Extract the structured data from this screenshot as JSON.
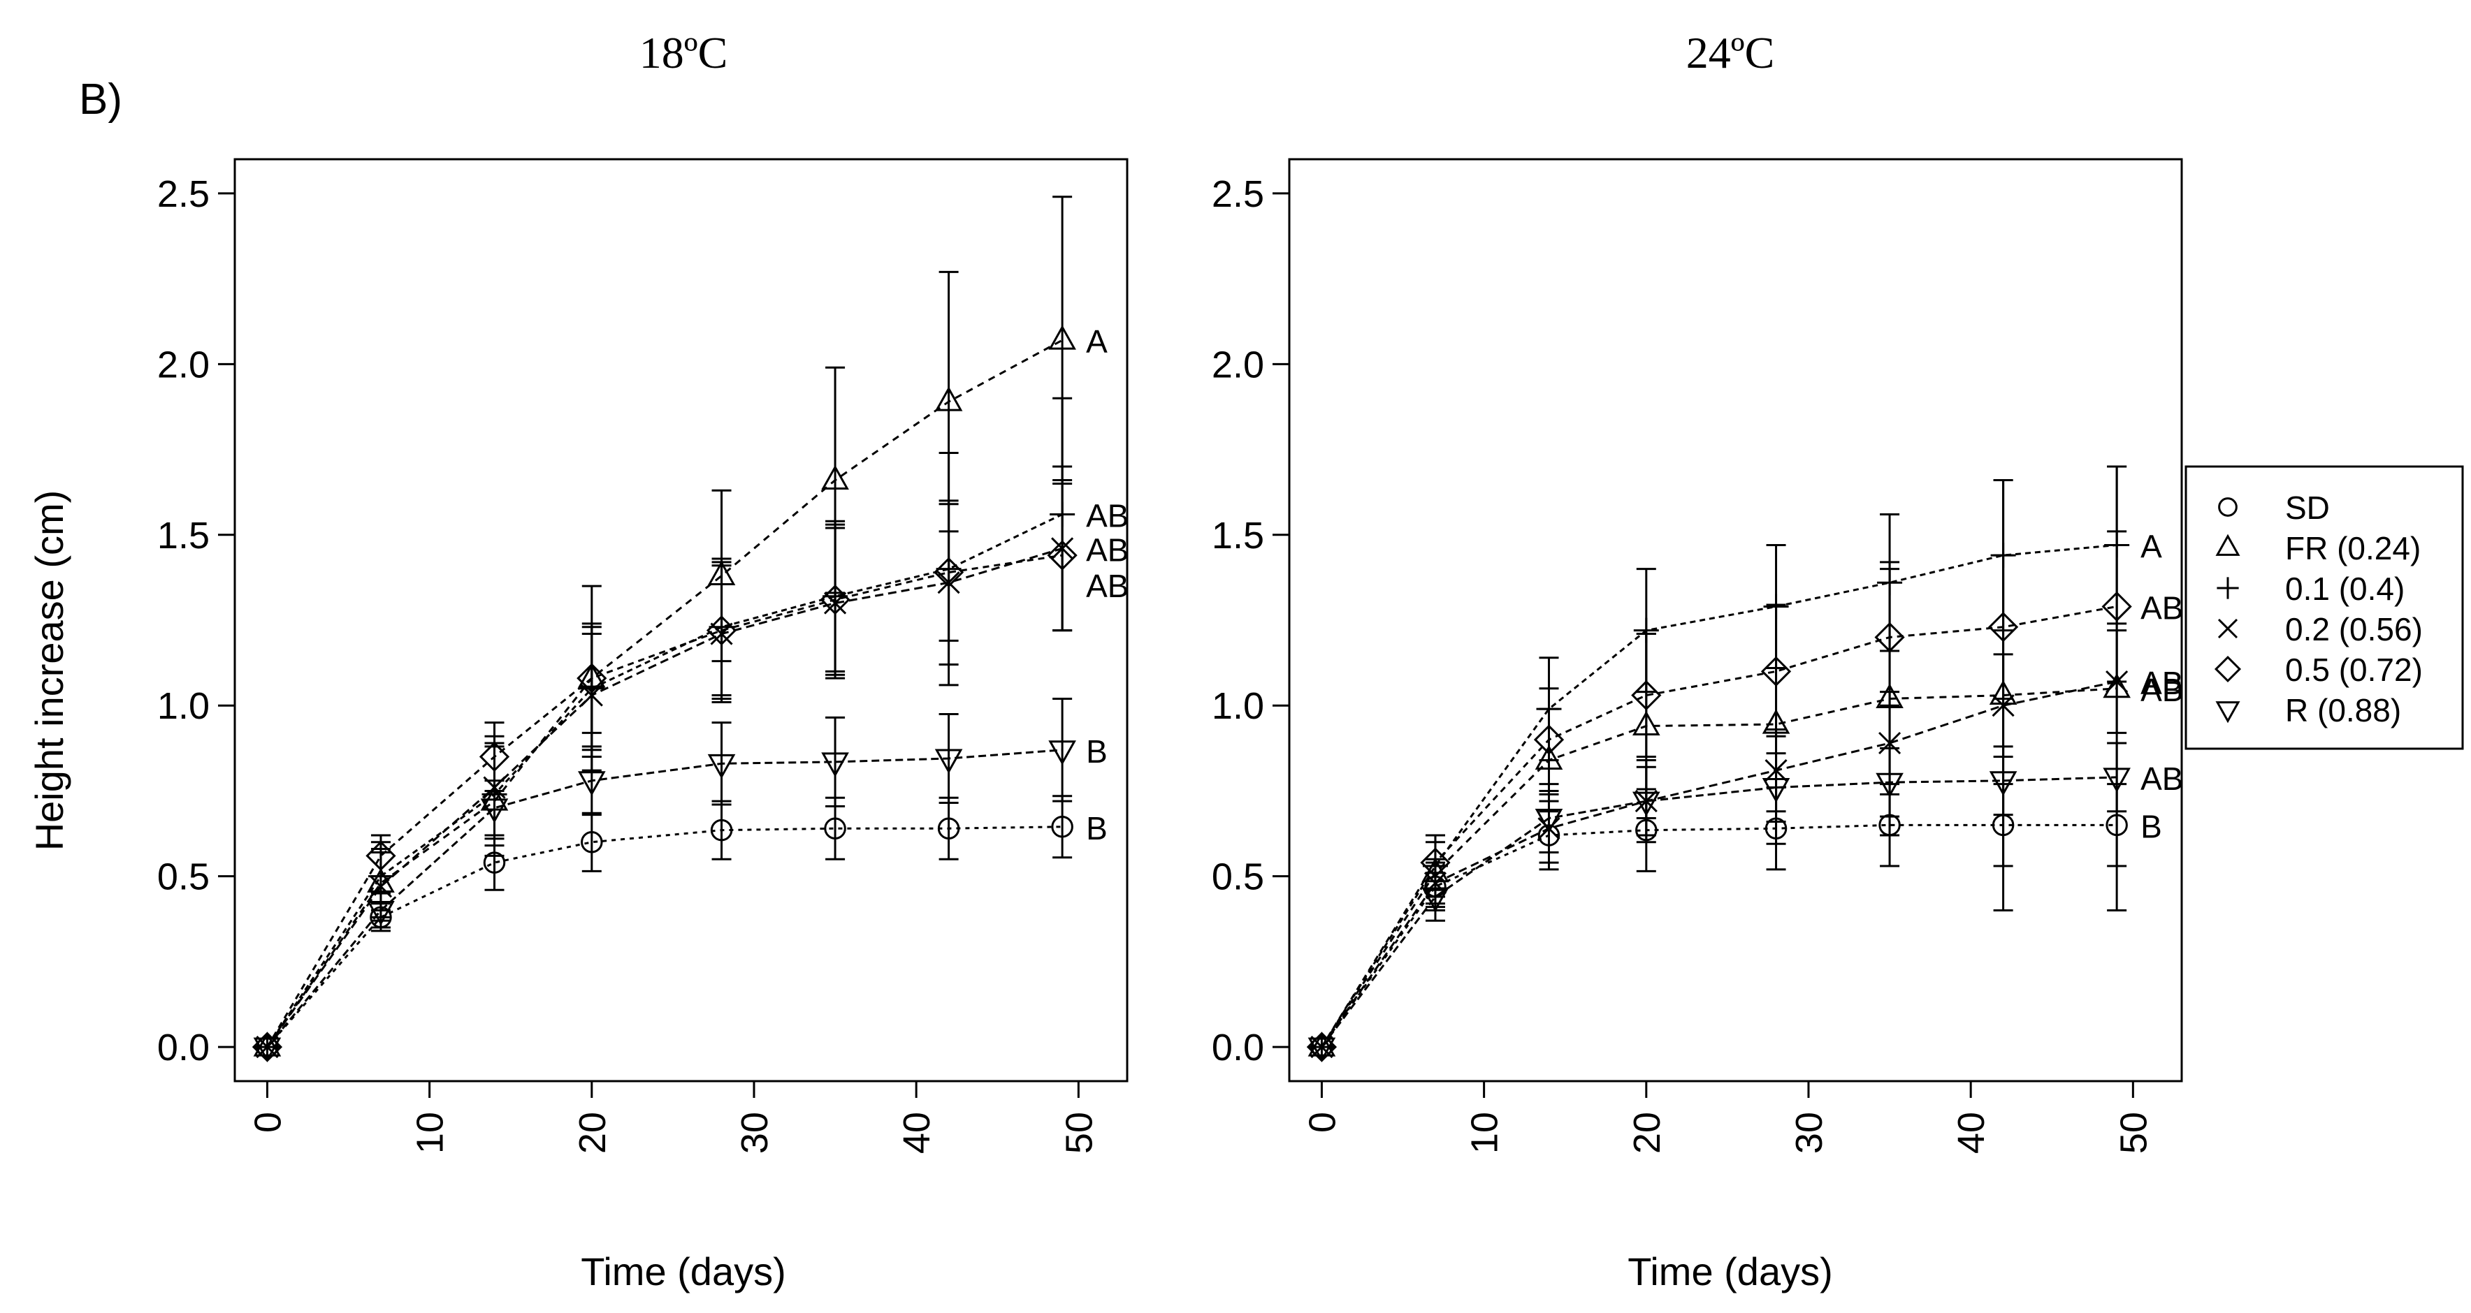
{
  "figure": {
    "panel_label": "B)"
  },
  "legend": {
    "entries": [
      {
        "label": "SD",
        "marker": "circle"
      },
      {
        "label": "FR (0.24)",
        "marker": "triangle-up"
      },
      {
        "label": "0.1 (0.4)",
        "marker": "plus"
      },
      {
        "label": "0.2 (0.56)",
        "marker": "cross"
      },
      {
        "label": "0.5 (0.72)",
        "marker": "diamond"
      },
      {
        "label": "R (0.88)",
        "marker": "triangle-down"
      }
    ]
  },
  "chart_data": [
    {
      "type": "line",
      "title": "18ºC",
      "xlabel": "Time (days)",
      "ylabel": "Height increase (cm)",
      "xlim": [
        -2,
        53
      ],
      "ylim": [
        -0.1,
        2.6
      ],
      "xticks": [
        0,
        10,
        20,
        30,
        40,
        50
      ],
      "yticks": [
        0.0,
        0.5,
        1.0,
        1.5,
        2.0,
        2.5
      ],
      "x": [
        0,
        7,
        14,
        20,
        28,
        35,
        42,
        49
      ],
      "series": [
        {
          "name": "SD",
          "marker": "circle",
          "values": [
            0,
            0.38,
            0.54,
            0.6,
            0.635,
            0.64,
            0.64,
            0.645
          ],
          "errors": [
            0,
            0.04,
            0.08,
            0.085,
            0.085,
            0.09,
            0.09,
            0.09
          ]
        },
        {
          "name": "FR (0.24)",
          "marker": "triangle-up",
          "values": [
            0,
            0.48,
            0.72,
            1.08,
            1.38,
            1.66,
            1.89,
            2.07
          ],
          "errors": [
            0,
            0.1,
            0.16,
            0.27,
            0.25,
            0.33,
            0.38,
            0.42
          ]
        },
        {
          "name": "0.1 (0.4)",
          "marker": "plus",
          "values": [
            0,
            0.5,
            0.74,
            1.05,
            1.23,
            1.32,
            1.4,
            1.56
          ],
          "errors": [
            0,
            0.1,
            0.15,
            0.18,
            0.2,
            0.22,
            0.34,
            0.34
          ]
        },
        {
          "name": "0.2 (0.56)",
          "marker": "cross",
          "values": [
            0,
            0.47,
            0.76,
            1.03,
            1.21,
            1.3,
            1.36,
            1.46
          ],
          "errors": [
            0,
            0.1,
            0.15,
            0.18,
            0.2,
            0.22,
            0.24,
            0.24
          ]
        },
        {
          "name": "0.5 (0.72)",
          "marker": "diamond",
          "values": [
            0,
            0.56,
            0.85,
            1.08,
            1.22,
            1.31,
            1.39,
            1.44
          ],
          "errors": [
            0,
            0.06,
            0.1,
            0.16,
            0.2,
            0.22,
            0.2,
            0.22
          ]
        },
        {
          "name": "R (0.88)",
          "marker": "triangle-down",
          "values": [
            0,
            0.4,
            0.7,
            0.78,
            0.83,
            0.835,
            0.845,
            0.87
          ],
          "errors": [
            0,
            0.05,
            0.08,
            0.1,
            0.12,
            0.13,
            0.13,
            0.15
          ]
        }
      ],
      "annotations": [
        {
          "text": "A",
          "series": "FR (0.24)"
        },
        {
          "text": "AB",
          "series": "0.1 (0.4)"
        },
        {
          "text": "AB",
          "series": "0.2 (0.56)"
        },
        {
          "text": "AB",
          "series": "0.5 (0.72)"
        },
        {
          "text": "B",
          "series": "R (0.88)"
        },
        {
          "text": "B",
          "series": "SD"
        }
      ]
    },
    {
      "type": "line",
      "title": "24ºC",
      "xlabel": "Time (days)",
      "ylabel": "",
      "xlim": [
        -2,
        53
      ],
      "ylim": [
        -0.1,
        2.6
      ],
      "xticks": [
        0,
        10,
        20,
        30,
        40,
        50
      ],
      "yticks": [
        0.0,
        0.5,
        1.0,
        1.5,
        2.0,
        2.5
      ],
      "x": [
        0,
        7,
        14,
        20,
        28,
        35,
        42,
        49
      ],
      "series": [
        {
          "name": "SD",
          "marker": "circle",
          "values": [
            0,
            0.47,
            0.62,
            0.635,
            0.64,
            0.65,
            0.65,
            0.65
          ],
          "errors": [
            0,
            0.07,
            0.1,
            0.12,
            0.12,
            0.12,
            0.12,
            0.12
          ]
        },
        {
          "name": "FR (0.24)",
          "marker": "triangle-up",
          "values": [
            0,
            0.51,
            0.84,
            0.94,
            0.945,
            1.02,
            1.03,
            1.05
          ],
          "errors": [
            0,
            0.09,
            0.15,
            0.27,
            0.35,
            0.4,
            0.63,
            0.65
          ]
        },
        {
          "name": "0.1 (0.4)",
          "marker": "plus",
          "values": [
            0,
            0.53,
            0.99,
            1.22,
            1.29,
            1.36,
            1.44,
            1.47
          ],
          "errors": [
            0,
            0.09,
            0.15,
            0.18,
            0.18,
            0.2,
            0.22,
            0.23
          ]
        },
        {
          "name": "0.2 (0.56)",
          "marker": "cross",
          "values": [
            0,
            0.48,
            0.64,
            0.72,
            0.81,
            0.89,
            1.0,
            1.07
          ],
          "errors": [
            0,
            0.07,
            0.1,
            0.12,
            0.12,
            0.15,
            0.15,
            0.15
          ]
        },
        {
          "name": "0.5 (0.72)",
          "marker": "diamond",
          "values": [
            0,
            0.54,
            0.9,
            1.03,
            1.1,
            1.2,
            1.23,
            1.29
          ],
          "errors": [
            0,
            0.08,
            0.15,
            0.18,
            0.19,
            0.2,
            0.21,
            0.22
          ]
        },
        {
          "name": "R (0.88)",
          "marker": "triangle-down",
          "values": [
            0,
            0.44,
            0.67,
            0.72,
            0.76,
            0.775,
            0.78,
            0.79
          ],
          "errors": [
            0,
            0.07,
            0.1,
            0.1,
            0.1,
            0.1,
            0.1,
            0.1
          ]
        }
      ],
      "annotations": [
        {
          "text": "A",
          "series": "0.1 (0.4)"
        },
        {
          "text": "AB",
          "series": "0.5 (0.72)"
        },
        {
          "text": "AB",
          "series": "0.2 (0.56)"
        },
        {
          "text": "AB",
          "series": "FR (0.24)"
        },
        {
          "text": "AB",
          "series": "R (0.88)"
        },
        {
          "text": "B",
          "series": "SD"
        }
      ]
    }
  ]
}
